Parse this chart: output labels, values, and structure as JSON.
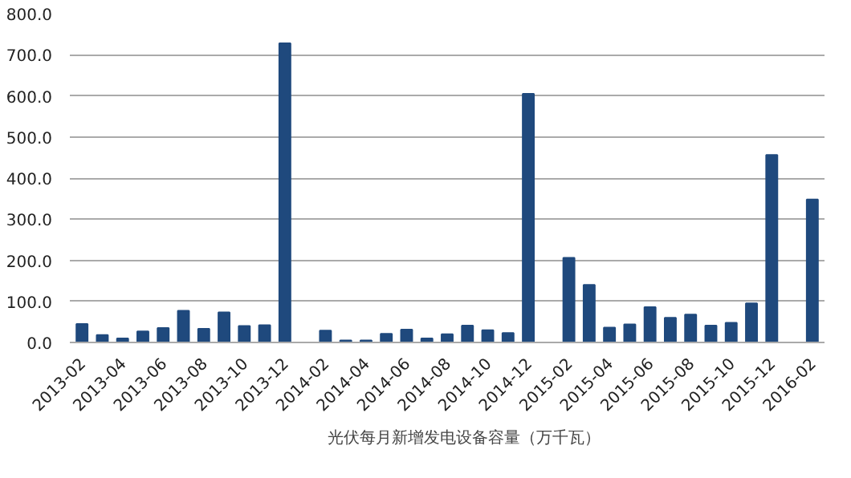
{
  "chart_data": {
    "type": "bar",
    "categories": [
      "2013-02",
      null,
      "2013-04",
      null,
      "2013-06",
      null,
      "2013-08",
      null,
      "2013-10",
      null,
      "2013-12",
      null,
      "2014-02",
      null,
      "2014-04",
      null,
      "2014-06",
      null,
      "2014-08",
      null,
      "2014-10",
      null,
      "2014-12",
      null,
      "2015-02",
      null,
      "2015-04",
      null,
      "2015-06",
      null,
      "2015-08",
      null,
      "2015-10",
      null,
      "2015-12",
      null,
      "2016-02"
    ],
    "series": [
      {
        "name": "光伏每月新增发电设备容量（万千瓦）",
        "color": "#1f497d",
        "values": [
          45,
          18,
          10,
          27,
          35,
          77,
          33,
          73,
          40,
          42,
          728,
          null,
          29,
          5,
          5,
          21,
          31,
          10,
          20,
          41,
          30,
          23,
          605,
          null,
          206,
          140,
          36,
          44,
          86,
          60,
          68,
          41,
          48,
          95,
          456,
          null,
          348
        ]
      }
    ],
    "ylim": [
      0,
      800
    ],
    "yticks": [
      {
        "value": 0,
        "label": "0.0"
      },
      {
        "value": 100,
        "label": "100.0"
      },
      {
        "value": 200,
        "label": "200.0"
      },
      {
        "value": 300,
        "label": "300.0"
      },
      {
        "value": 400,
        "label": "400.0"
      },
      {
        "value": 500,
        "label": "500.0"
      },
      {
        "value": 600,
        "label": "600.0"
      },
      {
        "value": 700,
        "label": "700.0"
      },
      {
        "value": 800,
        "label": "800.0"
      }
    ],
    "grid": "y",
    "legend": "bottom"
  }
}
